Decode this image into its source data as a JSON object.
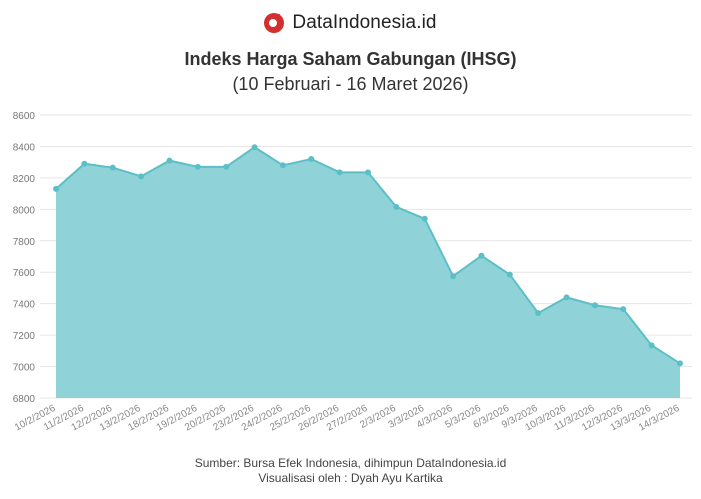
{
  "brand": {
    "name": "DataIndonesia.id"
  },
  "colors": {
    "area": "#8fd3d8",
    "line": "#5cbfc7",
    "grid": "#e6e6e6",
    "logo": "#d32f2f"
  },
  "chart_data": {
    "type": "area",
    "title": "Indeks Harga Saham Gabungan (IHSG)",
    "subtitle": "(10 Februari - 16 Maret 2026)",
    "xlabel": "",
    "ylabel": "",
    "ylim": [
      6800,
      8600
    ],
    "yticks": [
      6800,
      7000,
      7200,
      7400,
      7600,
      7800,
      8000,
      8200,
      8400,
      8600
    ],
    "grid": true,
    "categories": [
      "10/2/2026",
      "11/2/2026",
      "12/2/2026",
      "13/2/2026",
      "18/2/2026",
      "19/2/2026",
      "20/2/2026",
      "23/2/2026",
      "24/2/2026",
      "25/2/2026",
      "26/2/2026",
      "27/2/2026",
      "2/3/2026",
      "3/3/2026",
      "4/3/2026",
      "5/3/2026",
      "6/3/2026",
      "9/3/2026",
      "10/3/2026",
      "11/3/2026",
      "12/3/2026",
      "13/3/2026",
      "14/3/2026"
    ],
    "series": [
      {
        "values": [
          8130,
          8290,
          8265,
          8210,
          8310,
          8270,
          8270,
          8395,
          8280,
          8320,
          8235,
          8235,
          8015,
          7940,
          7575,
          7705,
          7585,
          7340,
          7440,
          7390,
          7365,
          7135,
          7020
        ]
      }
    ]
  },
  "footer": {
    "source": "Sumber: Bursa Efek Indonesia, dihimpun DataIndonesia.id",
    "credit": "Visualisasi oleh : Dyah Ayu Kartika"
  }
}
